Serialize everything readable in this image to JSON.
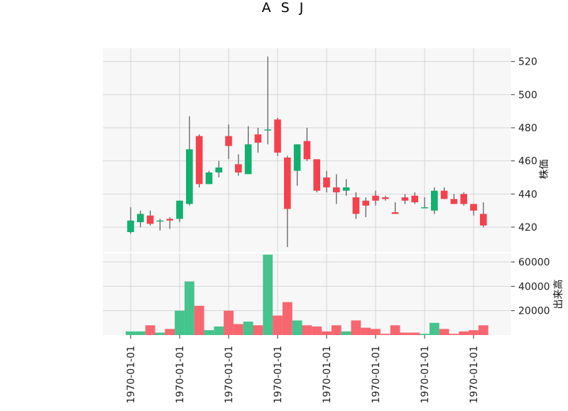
{
  "chart_data": {
    "type": "candlestick",
    "title": "A S J",
    "price_panel": {
      "ylabel": "株価",
      "ylim": [
        405,
        528
      ],
      "yticks": [
        420,
        440,
        460,
        480,
        500,
        520
      ],
      "ytick_labels": [
        "420",
        "440",
        "460",
        "480",
        "500",
        "520"
      ],
      "grid": true
    },
    "volume_panel": {
      "ylabel": "出来高",
      "ylim": [
        0,
        67000
      ],
      "yticks": [
        20000,
        40000,
        60000
      ],
      "ytick_labels": [
        "20000",
        "40000",
        "60000"
      ],
      "grid": true
    },
    "x_tick_labels": [
      "1970-01-01",
      "1970-01-01",
      "1970-01-01",
      "1970-01-01",
      "1970-01-01",
      "1970-01-01",
      "1970-01-01",
      "1970-01-01"
    ],
    "x_tick_indices": [
      0,
      5,
      10,
      15,
      20,
      25,
      30,
      35
    ],
    "colors": {
      "up": "#10b06f",
      "down": "#f5414d",
      "up_volume": "#45c48d",
      "down_volume": "#f86670",
      "wick": "#555555",
      "plot_bg": "#f7f7f7",
      "grid": "#d6d6d6"
    },
    "candles": [
      {
        "open": 417,
        "high": 432,
        "low": 416,
        "close": 424,
        "volume": 3000
      },
      {
        "open": 423,
        "high": 430,
        "low": 420,
        "close": 428,
        "volume": 3000
      },
      {
        "open": 427,
        "high": 430,
        "low": 421,
        "close": 422,
        "volume": 8000
      },
      {
        "open": 424,
        "high": 425,
        "low": 418,
        "close": 424,
        "volume": 2000
      },
      {
        "open": 425,
        "high": 426,
        "low": 419,
        "close": 424,
        "volume": 5000
      },
      {
        "open": 425,
        "high": 436,
        "low": 423,
        "close": 436,
        "volume": 20000
      },
      {
        "open": 434,
        "high": 487,
        "low": 433,
        "close": 467,
        "volume": 44000
      },
      {
        "open": 475,
        "high": 476,
        "low": 444,
        "close": 446,
        "volume": 24000
      },
      {
        "open": 446,
        "high": 454,
        "low": 446,
        "close": 453,
        "volume": 4000
      },
      {
        "open": 453,
        "high": 460,
        "low": 450,
        "close": 456,
        "volume": 7000
      },
      {
        "open": 475,
        "high": 482,
        "low": 461,
        "close": 469,
        "volume": 20000
      },
      {
        "open": 458,
        "high": 464,
        "low": 451,
        "close": 453,
        "volume": 9000
      },
      {
        "open": 452,
        "high": 481,
        "low": 452,
        "close": 470,
        "volume": 11000
      },
      {
        "open": 476,
        "high": 480,
        "low": 465,
        "close": 471,
        "volume": 8000
      },
      {
        "open": 479,
        "high": 523,
        "low": 470,
        "close": 479,
        "volume": 66000
      },
      {
        "open": 485,
        "high": 486,
        "low": 463,
        "close": 465,
        "volume": 16000
      },
      {
        "open": 462,
        "high": 463,
        "low": 408,
        "close": 431,
        "volume": 27000
      },
      {
        "open": 454,
        "high": 470,
        "low": 445,
        "close": 470,
        "volume": 12000
      },
      {
        "open": 472,
        "high": 480,
        "low": 460,
        "close": 461,
        "volume": 8000
      },
      {
        "open": 461,
        "high": 461,
        "low": 441,
        "close": 442,
        "volume": 7000
      },
      {
        "open": 450,
        "high": 454,
        "low": 441,
        "close": 444,
        "volume": 3000
      },
      {
        "open": 444,
        "high": 452,
        "low": 434,
        "close": 441,
        "volume": 8000
      },
      {
        "open": 442,
        "high": 449,
        "low": 439,
        "close": 444,
        "volume": 3000
      },
      {
        "open": 438,
        "high": 441,
        "low": 425,
        "close": 428,
        "volume": 12000
      },
      {
        "open": 436,
        "high": 438,
        "low": 426,
        "close": 433,
        "volume": 6000
      },
      {
        "open": 439,
        "high": 442,
        "low": 433,
        "close": 436,
        "volume": 5000
      },
      {
        "open": 438,
        "high": 439,
        "low": 436,
        "close": 437,
        "volume": 1000
      },
      {
        "open": 429,
        "high": 435,
        "low": 428,
        "close": 428,
        "volume": 8000
      },
      {
        "open": 438,
        "high": 440,
        "low": 434,
        "close": 436,
        "volume": 2000
      },
      {
        "open": 439,
        "high": 441,
        "low": 434,
        "close": 435,
        "volume": 2000
      },
      {
        "open": 432,
        "high": 438,
        "low": 432,
        "close": 432,
        "volume": 1000
      },
      {
        "open": 430,
        "high": 444,
        "low": 428,
        "close": 442,
        "volume": 10000
      },
      {
        "open": 442,
        "high": 444,
        "low": 437,
        "close": 437,
        "volume": 5000
      },
      {
        "open": 437,
        "high": 440,
        "low": 434,
        "close": 434,
        "volume": 1000
      },
      {
        "open": 440,
        "high": 441,
        "low": 433,
        "close": 434,
        "volume": 3000
      },
      {
        "open": 434,
        "high": 434,
        "low": 427,
        "close": 430,
        "volume": 4000
      },
      {
        "open": 428,
        "high": 435,
        "low": 420,
        "close": 421,
        "volume": 8000
      }
    ]
  }
}
